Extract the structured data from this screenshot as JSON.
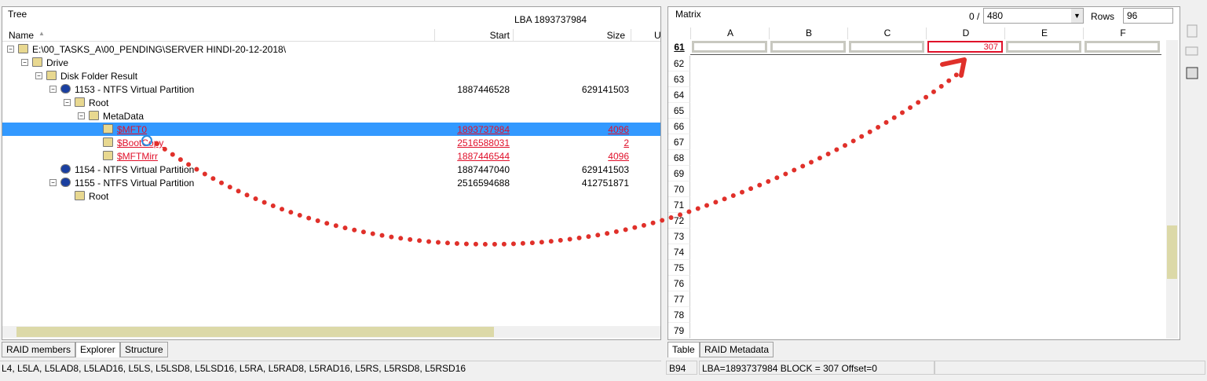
{
  "tree": {
    "title": "Tree",
    "lba": "LBA  1893737984",
    "columns": [
      "Name",
      "Start",
      "Size",
      "U"
    ],
    "items": [
      {
        "name": "E:\\00_TASKS_A\\00_PENDING\\SERVER HINDI-20-12-2018\\",
        "children": [
          {
            "name": "Drive",
            "children": [
              {
                "name": "Disk Folder Result",
                "children": [
                  {
                    "name": "1153 - NTFS Virtual Partition",
                    "start": "1887446528",
                    "size": "629141503",
                    "children": [
                      {
                        "name": "Root",
                        "children": [
                          {
                            "name": "MetaData",
                            "children": [
                              {
                                "name": "$MFT0",
                                "start": "1893737984",
                                "size": "4096",
                                "selected": true,
                                "highlight": true
                              },
                              {
                                "name": "$BootCopy",
                                "start": "2516588031",
                                "size": "2",
                                "highlight": true
                              },
                              {
                                "name": "$MFTMirr",
                                "start": "1887446544",
                                "size": "4096",
                                "highlight": true
                              }
                            ]
                          }
                        ]
                      }
                    ]
                  },
                  {
                    "name": "1154 - NTFS Virtual Partition",
                    "start": "1887447040",
                    "size": "629141503"
                  },
                  {
                    "name": "1155 - NTFS Virtual Partition",
                    "start": "2516594688",
                    "size": "412751871",
                    "children": [
                      {
                        "name": "Root"
                      }
                    ]
                  }
                ]
              }
            ]
          }
        ]
      }
    ],
    "tabs": [
      "RAID members",
      "Explorer",
      "Structure"
    ],
    "status": "L4, L5LA, L5LAD8, L5LAD16, L5LS, L5LSD8, L5LSD16, L5RA, L5RAD8, L5RAD16, L5RS, L5RSD8, L5RSD16"
  },
  "matrix": {
    "title": "Matrix",
    "offset": "0 /",
    "total": "480",
    "rows_label": "Rows",
    "rows_value": "96",
    "columns": [
      "A",
      "B",
      "C",
      "D",
      "E",
      "F"
    ],
    "first_row": 61,
    "row_numbers": [
      62,
      63,
      64,
      65,
      66,
      67,
      68,
      69,
      70,
      71,
      72,
      73,
      74,
      75,
      76,
      77,
      78,
      79
    ],
    "cells": [
      "",
      "",
      "",
      "307",
      "",
      ""
    ],
    "tabs": [
      "Table",
      "RAID Metadata"
    ],
    "status": [
      "B94",
      "LBA=1893737984 BLOCK = 307 Offset=0"
    ]
  }
}
